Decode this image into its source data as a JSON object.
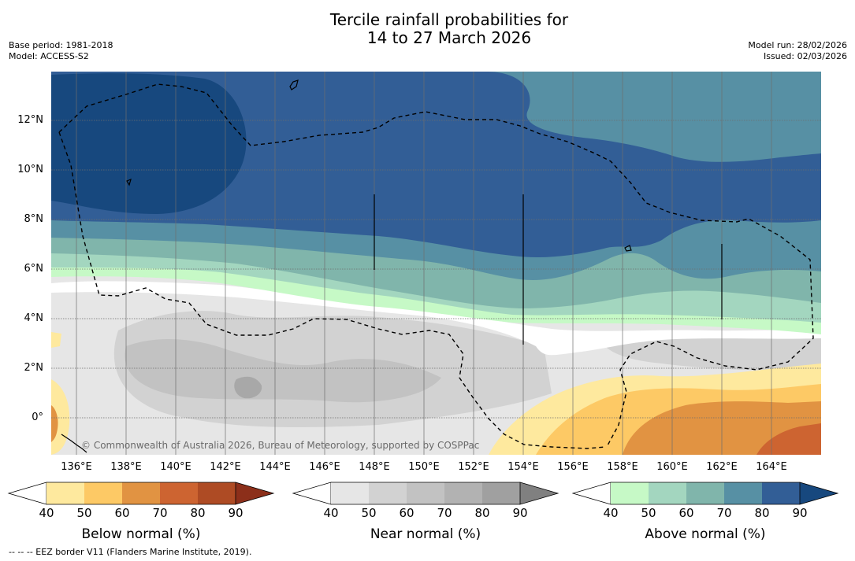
{
  "title_line1": "Tercile rainfall probabilities for",
  "title_line2": "14 to 27 March 2026",
  "base_period": "Base period: 1981-2018",
  "model": "Model: ACCESS-S2",
  "model_run": "Model run: 28/02/2026",
  "issued": "Issued: 02/03/2026",
  "lat_labels": [
    "12°N",
    "10°N",
    "8°N",
    "6°N",
    "4°N",
    "2°N",
    "0°"
  ],
  "lon_labels": [
    "136°E",
    "138°E",
    "140°E",
    "142°E",
    "144°E",
    "146°E",
    "148°E",
    "150°E",
    "152°E",
    "154°E",
    "156°E",
    "158°E",
    "160°E",
    "162°E",
    "164°E"
  ],
  "copyright": "© Commonwealth of Australia 2026, Bureau of Meteorology, supported by COSPPac",
  "colorbars": {
    "below": {
      "label": "Below normal (%)",
      "ticks": [
        "40",
        "50",
        "60",
        "70",
        "80",
        "90"
      ],
      "colors": [
        "#ffffff",
        "#fee99e",
        "#fdc965",
        "#e19342",
        "#cd6431",
        "#ae4b24",
        "#8c2f1a"
      ]
    },
    "near": {
      "label": "Near normal (%)",
      "ticks": [
        "40",
        "50",
        "60",
        "70",
        "80",
        "90"
      ],
      "colors": [
        "#ffffff",
        "#e6e6e6",
        "#d2d2d2",
        "#c2c2c2",
        "#b2b2b2",
        "#a0a0a0",
        "#808080"
      ]
    },
    "above": {
      "label": "Above normal (%)",
      "ticks": [
        "40",
        "50",
        "60",
        "70",
        "80",
        "90"
      ],
      "colors": [
        "#ffffff",
        "#c6f9c6",
        "#a3d6bf",
        "#80b5ab",
        "#5790a4",
        "#325e96",
        "#17487e"
      ]
    }
  },
  "eez_note": "--  --  -- EEZ border V11 (Flanders Marine Institute, 2019)."
}
